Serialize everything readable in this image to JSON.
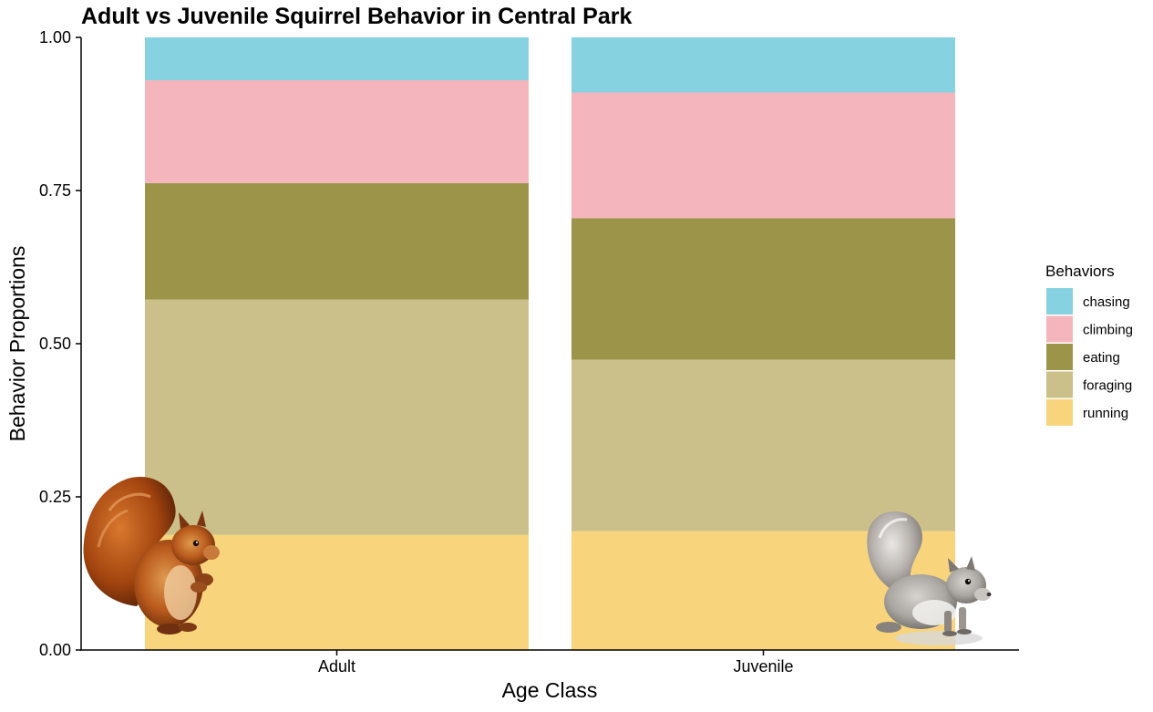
{
  "chart_data": {
    "type": "bar",
    "stacked": true,
    "title": "Adult vs Juvenile Squirrel Behavior in Central Park",
    "xlabel": "Age Class",
    "ylabel": "Behavior Proportions",
    "categories": [
      "Adult",
      "Juvenile"
    ],
    "ylim": [
      0,
      1
    ],
    "yticks": [
      "0.00",
      "0.25",
      "0.50",
      "0.75",
      "1.00"
    ],
    "ytick_values": [
      0,
      0.25,
      0.5,
      0.75,
      1.0
    ],
    "grid": false,
    "legend": {
      "title": "Behaviors",
      "placement": "right"
    },
    "series": [
      {
        "name": "running",
        "color": "#F8D57C",
        "values": [
          0.188,
          0.194
        ]
      },
      {
        "name": "foraging",
        "color": "#CCC08A",
        "values": [
          0.384,
          0.28
        ]
      },
      {
        "name": "eating",
        "color": "#9C9449",
        "values": [
          0.19,
          0.231
        ]
      },
      {
        "name": "climbing",
        "color": "#F5B5BD",
        "values": [
          0.168,
          0.205
        ]
      },
      {
        "name": "chasing",
        "color": "#86D2E1",
        "values": [
          0.07,
          0.09
        ]
      }
    ]
  },
  "decorations": [
    {
      "name": "red-squirrel-image",
      "icon": "red-squirrel"
    },
    {
      "name": "gray-squirrel-image",
      "icon": "gray-squirrel"
    }
  ]
}
